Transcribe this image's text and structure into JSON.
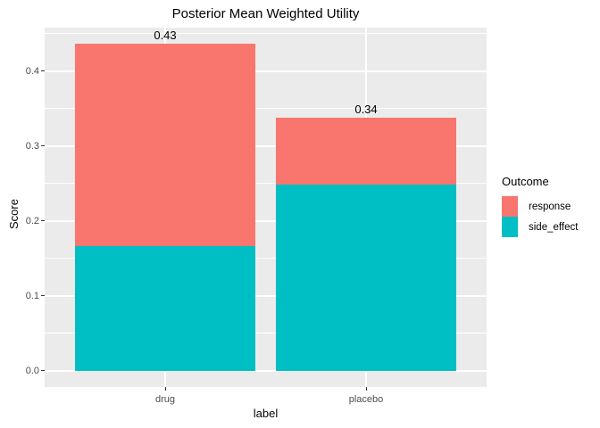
{
  "title": "Posterior Mean Weighted Utility",
  "chart_data": {
    "type": "bar",
    "stacked": true,
    "title": "Posterior Mean Weighted Utility",
    "xlabel": "label",
    "ylabel": "Score",
    "categories": [
      "drug",
      "placebo"
    ],
    "series": [
      {
        "name": "response",
        "color": "#F8766D",
        "values": [
          0.27,
          0.09
        ]
      },
      {
        "name": "side_effect",
        "color": "#00BFC4",
        "values": [
          0.166,
          0.248
        ]
      }
    ],
    "totals_labels": [
      "0.43",
      "0.34"
    ],
    "y_ticks": [
      0.0,
      0.1,
      0.2,
      0.3,
      0.4
    ],
    "y_tick_labels": [
      "0.0",
      "0.1",
      "0.2",
      "0.3",
      "0.4"
    ],
    "y_minor_gridlines": [
      0.05,
      0.15,
      0.25,
      0.35,
      0.45
    ],
    "ylim": [
      -0.0215,
      0.458
    ],
    "grid": true,
    "legend_title": "Outcome",
    "legend_position": "right"
  },
  "colors": {
    "panel_background": "#EBEBEB",
    "gridline": "#FFFFFF",
    "tick_text": "#4D4D4D",
    "tick_mark": "#333333",
    "response": "#F8766D",
    "side_effect": "#00BFC4",
    "text": "#000000"
  }
}
